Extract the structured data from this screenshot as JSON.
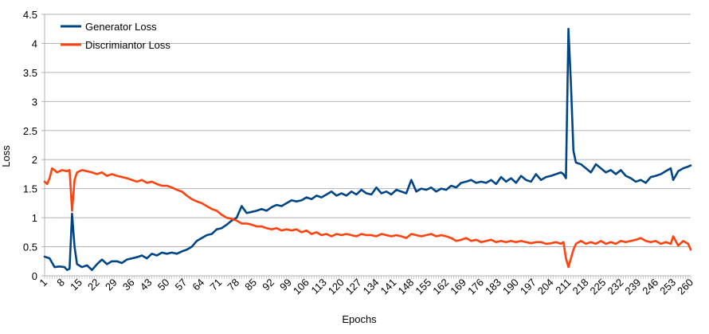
{
  "chart_data": {
    "type": "line",
    "title": "",
    "xlabel": "Epochs",
    "ylabel": "Loss",
    "ylim": [
      0,
      4.5
    ],
    "yticks": [
      "0",
      "0.5",
      "1",
      "1.5",
      "2",
      "2.5",
      "3",
      "3.5",
      "4",
      "4.5"
    ],
    "xlim": [
      1,
      260
    ],
    "xticks": [
      "1",
      "8",
      "15",
      "22",
      "29",
      "36",
      "43",
      "50",
      "57",
      "64",
      "71",
      "78",
      "85",
      "92",
      "99",
      "106",
      "113",
      "120",
      "127",
      "134",
      "141",
      "148",
      "155",
      "162",
      "169",
      "176",
      "183",
      "190",
      "197",
      "204",
      "211",
      "218",
      "225",
      "232",
      "239",
      "246",
      "253",
      "260"
    ],
    "grid": "horizontal",
    "legend_position": "top-left",
    "series": [
      {
        "name": "Generator Loss",
        "color": "#004586",
        "points": [
          [
            1,
            0.33
          ],
          [
            3,
            0.3
          ],
          [
            5,
            0.15
          ],
          [
            7,
            0.16
          ],
          [
            9,
            0.15
          ],
          [
            10,
            0.1
          ],
          [
            11,
            0.12
          ],
          [
            12,
            1.07
          ],
          [
            13,
            0.5
          ],
          [
            14,
            0.2
          ],
          [
            16,
            0.15
          ],
          [
            18,
            0.18
          ],
          [
            20,
            0.1
          ],
          [
            22,
            0.2
          ],
          [
            24,
            0.28
          ],
          [
            26,
            0.2
          ],
          [
            28,
            0.25
          ],
          [
            30,
            0.25
          ],
          [
            32,
            0.22
          ],
          [
            34,
            0.28
          ],
          [
            36,
            0.3
          ],
          [
            38,
            0.32
          ],
          [
            40,
            0.35
          ],
          [
            42,
            0.3
          ],
          [
            44,
            0.38
          ],
          [
            46,
            0.35
          ],
          [
            48,
            0.4
          ],
          [
            50,
            0.38
          ],
          [
            52,
            0.4
          ],
          [
            54,
            0.38
          ],
          [
            56,
            0.42
          ],
          [
            58,
            0.45
          ],
          [
            60,
            0.5
          ],
          [
            62,
            0.6
          ],
          [
            64,
            0.65
          ],
          [
            66,
            0.7
          ],
          [
            68,
            0.72
          ],
          [
            70,
            0.8
          ],
          [
            72,
            0.82
          ],
          [
            74,
            0.88
          ],
          [
            76,
            0.95
          ],
          [
            78,
            1.0
          ],
          [
            80,
            1.2
          ],
          [
            82,
            1.08
          ],
          [
            84,
            1.1
          ],
          [
            86,
            1.12
          ],
          [
            88,
            1.15
          ],
          [
            90,
            1.12
          ],
          [
            92,
            1.18
          ],
          [
            94,
            1.22
          ],
          [
            96,
            1.2
          ],
          [
            98,
            1.25
          ],
          [
            100,
            1.3
          ],
          [
            102,
            1.28
          ],
          [
            104,
            1.3
          ],
          [
            106,
            1.35
          ],
          [
            108,
            1.32
          ],
          [
            110,
            1.38
          ],
          [
            112,
            1.35
          ],
          [
            114,
            1.4
          ],
          [
            116,
            1.45
          ],
          [
            118,
            1.38
          ],
          [
            120,
            1.42
          ],
          [
            122,
            1.38
          ],
          [
            124,
            1.45
          ],
          [
            126,
            1.4
          ],
          [
            128,
            1.48
          ],
          [
            130,
            1.42
          ],
          [
            132,
            1.4
          ],
          [
            134,
            1.52
          ],
          [
            136,
            1.42
          ],
          [
            138,
            1.45
          ],
          [
            140,
            1.4
          ],
          [
            142,
            1.48
          ],
          [
            144,
            1.45
          ],
          [
            146,
            1.42
          ],
          [
            148,
            1.65
          ],
          [
            150,
            1.45
          ],
          [
            152,
            1.5
          ],
          [
            154,
            1.48
          ],
          [
            156,
            1.52
          ],
          [
            158,
            1.45
          ],
          [
            160,
            1.5
          ],
          [
            162,
            1.48
          ],
          [
            164,
            1.55
          ],
          [
            166,
            1.52
          ],
          [
            168,
            1.6
          ],
          [
            170,
            1.62
          ],
          [
            172,
            1.65
          ],
          [
            174,
            1.6
          ],
          [
            176,
            1.62
          ],
          [
            178,
            1.6
          ],
          [
            180,
            1.65
          ],
          [
            182,
            1.58
          ],
          [
            184,
            1.7
          ],
          [
            186,
            1.62
          ],
          [
            188,
            1.68
          ],
          [
            190,
            1.6
          ],
          [
            192,
            1.72
          ],
          [
            194,
            1.65
          ],
          [
            196,
            1.62
          ],
          [
            198,
            1.75
          ],
          [
            200,
            1.65
          ],
          [
            202,
            1.7
          ],
          [
            204,
            1.72
          ],
          [
            206,
            1.75
          ],
          [
            208,
            1.78
          ],
          [
            209,
            1.75
          ],
          [
            210,
            1.68
          ],
          [
            211,
            4.25
          ],
          [
            212,
            3.3
          ],
          [
            213,
            2.15
          ],
          [
            214,
            1.95
          ],
          [
            216,
            1.92
          ],
          [
            218,
            1.85
          ],
          [
            220,
            1.78
          ],
          [
            222,
            1.92
          ],
          [
            224,
            1.85
          ],
          [
            226,
            1.78
          ],
          [
            228,
            1.82
          ],
          [
            230,
            1.75
          ],
          [
            232,
            1.82
          ],
          [
            234,
            1.72
          ],
          [
            236,
            1.68
          ],
          [
            238,
            1.62
          ],
          [
            240,
            1.65
          ],
          [
            242,
            1.6
          ],
          [
            244,
            1.7
          ],
          [
            246,
            1.72
          ],
          [
            248,
            1.75
          ],
          [
            250,
            1.8
          ],
          [
            252,
            1.85
          ],
          [
            253,
            1.65
          ],
          [
            255,
            1.8
          ],
          [
            257,
            1.85
          ],
          [
            259,
            1.88
          ],
          [
            260,
            1.9
          ]
        ]
      },
      {
        "name": "Discrimiantor Loss",
        "color": "#ff420e",
        "points": [
          [
            1,
            1.62
          ],
          [
            2,
            1.58
          ],
          [
            3,
            1.68
          ],
          [
            4,
            1.85
          ],
          [
            6,
            1.78
          ],
          [
            8,
            1.82
          ],
          [
            10,
            1.8
          ],
          [
            11,
            1.82
          ],
          [
            12,
            1.12
          ],
          [
            13,
            1.65
          ],
          [
            14,
            1.78
          ],
          [
            16,
            1.82
          ],
          [
            18,
            1.8
          ],
          [
            20,
            1.78
          ],
          [
            22,
            1.75
          ],
          [
            24,
            1.78
          ],
          [
            26,
            1.72
          ],
          [
            28,
            1.75
          ],
          [
            30,
            1.72
          ],
          [
            32,
            1.7
          ],
          [
            34,
            1.68
          ],
          [
            36,
            1.65
          ],
          [
            38,
            1.62
          ],
          [
            40,
            1.65
          ],
          [
            42,
            1.6
          ],
          [
            44,
            1.62
          ],
          [
            46,
            1.58
          ],
          [
            48,
            1.55
          ],
          [
            50,
            1.55
          ],
          [
            52,
            1.52
          ],
          [
            54,
            1.48
          ],
          [
            56,
            1.45
          ],
          [
            58,
            1.38
          ],
          [
            60,
            1.32
          ],
          [
            62,
            1.28
          ],
          [
            64,
            1.25
          ],
          [
            66,
            1.2
          ],
          [
            68,
            1.15
          ],
          [
            70,
            1.12
          ],
          [
            72,
            1.05
          ],
          [
            74,
            1.0
          ],
          [
            76,
            0.98
          ],
          [
            78,
            0.95
          ],
          [
            80,
            0.9
          ],
          [
            82,
            0.9
          ],
          [
            84,
            0.88
          ],
          [
            86,
            0.85
          ],
          [
            88,
            0.85
          ],
          [
            90,
            0.82
          ],
          [
            92,
            0.8
          ],
          [
            94,
            0.82
          ],
          [
            96,
            0.78
          ],
          [
            98,
            0.8
          ],
          [
            100,
            0.78
          ],
          [
            102,
            0.8
          ],
          [
            104,
            0.75
          ],
          [
            106,
            0.78
          ],
          [
            108,
            0.72
          ],
          [
            110,
            0.75
          ],
          [
            112,
            0.7
          ],
          [
            114,
            0.72
          ],
          [
            116,
            0.68
          ],
          [
            118,
            0.72
          ],
          [
            120,
            0.7
          ],
          [
            122,
            0.72
          ],
          [
            124,
            0.7
          ],
          [
            126,
            0.68
          ],
          [
            128,
            0.72
          ],
          [
            130,
            0.7
          ],
          [
            132,
            0.7
          ],
          [
            134,
            0.68
          ],
          [
            136,
            0.72
          ],
          [
            138,
            0.7
          ],
          [
            140,
            0.68
          ],
          [
            142,
            0.7
          ],
          [
            144,
            0.68
          ],
          [
            146,
            0.65
          ],
          [
            148,
            0.72
          ],
          [
            150,
            0.7
          ],
          [
            152,
            0.68
          ],
          [
            154,
            0.7
          ],
          [
            156,
            0.72
          ],
          [
            158,
            0.68
          ],
          [
            160,
            0.7
          ],
          [
            162,
            0.68
          ],
          [
            164,
            0.65
          ],
          [
            166,
            0.6
          ],
          [
            168,
            0.62
          ],
          [
            170,
            0.65
          ],
          [
            172,
            0.6
          ],
          [
            174,
            0.62
          ],
          [
            176,
            0.58
          ],
          [
            178,
            0.6
          ],
          [
            180,
            0.62
          ],
          [
            182,
            0.58
          ],
          [
            184,
            0.6
          ],
          [
            186,
            0.58
          ],
          [
            188,
            0.6
          ],
          [
            190,
            0.58
          ],
          [
            192,
            0.6
          ],
          [
            194,
            0.58
          ],
          [
            196,
            0.56
          ],
          [
            198,
            0.58
          ],
          [
            200,
            0.58
          ],
          [
            202,
            0.55
          ],
          [
            204,
            0.56
          ],
          [
            206,
            0.58
          ],
          [
            208,
            0.55
          ],
          [
            209,
            0.58
          ],
          [
            210,
            0.3
          ],
          [
            211,
            0.15
          ],
          [
            212,
            0.3
          ],
          [
            213,
            0.45
          ],
          [
            214,
            0.55
          ],
          [
            216,
            0.6
          ],
          [
            218,
            0.55
          ],
          [
            220,
            0.58
          ],
          [
            222,
            0.55
          ],
          [
            224,
            0.6
          ],
          [
            226,
            0.55
          ],
          [
            228,
            0.58
          ],
          [
            230,
            0.55
          ],
          [
            232,
            0.6
          ],
          [
            234,
            0.58
          ],
          [
            236,
            0.6
          ],
          [
            238,
            0.62
          ],
          [
            240,
            0.65
          ],
          [
            242,
            0.6
          ],
          [
            244,
            0.58
          ],
          [
            246,
            0.6
          ],
          [
            248,
            0.55
          ],
          [
            250,
            0.58
          ],
          [
            252,
            0.55
          ],
          [
            253,
            0.68
          ],
          [
            255,
            0.52
          ],
          [
            257,
            0.6
          ],
          [
            259,
            0.55
          ],
          [
            260,
            0.45
          ]
        ]
      }
    ]
  }
}
